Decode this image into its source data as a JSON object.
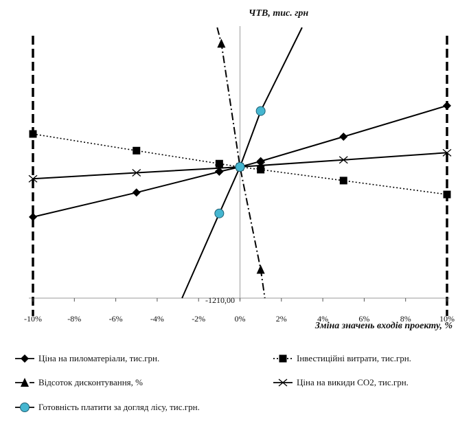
{
  "chart_data": {
    "type": "line",
    "title": "",
    "ylabel": "ЧТВ, тис. грн",
    "xlabel": "Зміна значень входів проекту, %",
    "y_min_label": "-1210,00",
    "x_ticks": [
      "-10%",
      "-8%",
      "-6%",
      "-4%",
      "-2%",
      "0%",
      "2%",
      "4%",
      "6%",
      "8%",
      "10%"
    ],
    "xlim": [
      -10,
      10
    ],
    "ylim": [
      -1210,
      1070
    ],
    "grid": false,
    "legend_position": "bottom",
    "series": [
      {
        "name": "Ціна на пиломатеріали, тис.грн.",
        "line": "solid",
        "marker": "diamond",
        "marker_color": "#000000",
        "x": [
          -10,
          -5,
          -1,
          0,
          1,
          5,
          10
        ],
        "y": [
          -462,
          -236,
          -44,
          0,
          44,
          232,
          470
        ]
      },
      {
        "name": "Інвестиційні витрати, тис.грн.",
        "line": "dotted",
        "marker": "square",
        "marker_color": "#000000",
        "x": [
          -10,
          -5,
          -1,
          0,
          1,
          5,
          10
        ],
        "y": [
          253,
          125,
          25,
          0,
          -25,
          -126,
          -254
        ]
      },
      {
        "name": "Відсоток дисконтування, %",
        "line": "dashdot",
        "marker": "triangle",
        "marker_color": "#000000",
        "x": [
          -1.1,
          -0.9,
          0,
          1,
          1.2
        ],
        "y": [
          1070,
          947,
          0,
          -947,
          -1210
        ]
      },
      {
        "name": "Ціна на викиди СО2, тис.грн.",
        "line": "solid",
        "marker": "x",
        "marker_color": "#000000",
        "x": [
          -10,
          -5,
          -1,
          0,
          1,
          5,
          10
        ],
        "y": [
          -109,
          -54,
          -11,
          0,
          11,
          54,
          109
        ]
      },
      {
        "name": "Готовність платити за догляд лісу, тис.грн.",
        "line": "solid",
        "marker": "circle",
        "marker_color": "#45b6d0",
        "x": [
          -2.8,
          -1,
          0,
          1,
          3
        ],
        "y": [
          -1210,
          -429,
          0,
          429,
          1070
        ]
      }
    ]
  }
}
